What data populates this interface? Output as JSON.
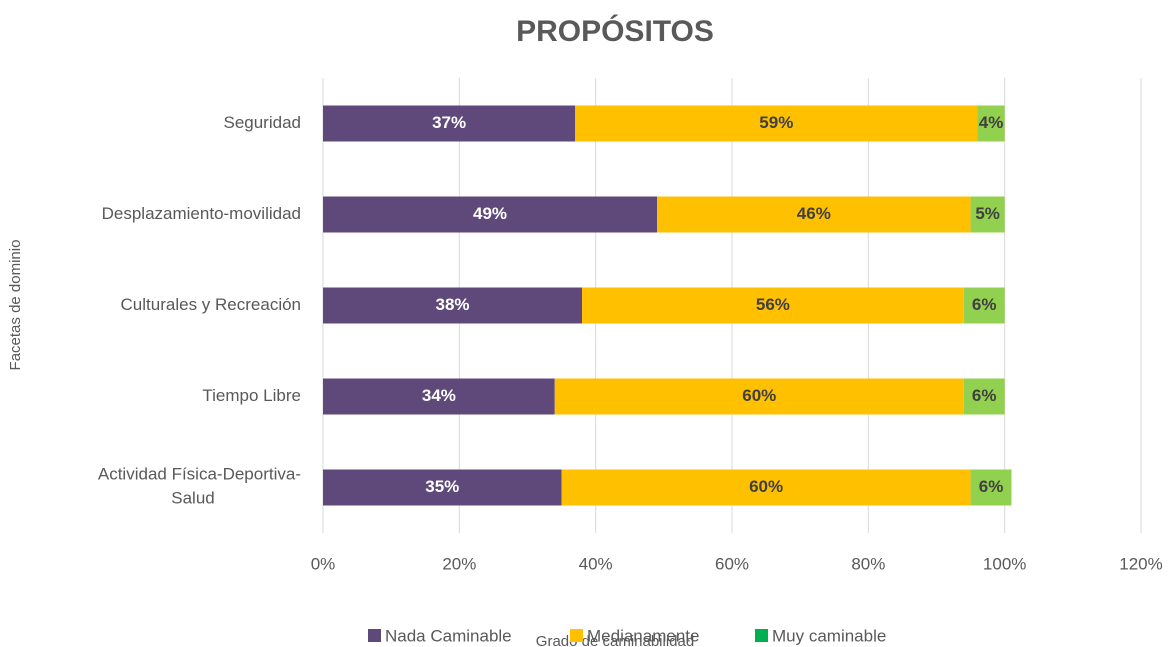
{
  "chart_data": {
    "type": "stacked_barh",
    "title": "PROPÓSITOS",
    "x_label": "Grado de caminabilidad",
    "y_label": "Facetas de dominio",
    "categories": [
      "Seguridad",
      "Desplazamiento-movilidad",
      "Culturales y Recreación ",
      "Tiempo Libre",
      "Actividad Física-Deportiva-Salud"
    ],
    "series": [
      {
        "name": "Nada Caminable",
        "color": "#5f497a",
        "label_color": "#ffffff",
        "values": [
          37,
          49,
          38,
          34,
          35
        ],
        "value_labels": [
          "37%",
          "49%",
          "38%",
          "34%",
          "35%"
        ]
      },
      {
        "name": "Medianamente",
        "color": "#ffc000",
        "label_color": "#404040",
        "values": [
          59,
          46,
          56,
          60,
          60
        ],
        "value_labels": [
          "59%",
          "46%",
          "56%",
          "60%",
          "60%"
        ]
      },
      {
        "name": "Muy caminable",
        "color": "#92d050",
        "legend_color": "#00b050",
        "label_color": "#404040",
        "values": [
          4,
          5,
          6,
          6,
          6
        ],
        "value_labels": [
          "4%",
          "5%",
          "6%",
          "6%",
          "6%"
        ]
      }
    ],
    "xlim": [
      0,
      120
    ],
    "xticks": [
      {
        "value": 0,
        "label": "0%"
      },
      {
        "value": 20,
        "label": "20%"
      },
      {
        "value": 40,
        "label": "40%"
      },
      {
        "value": 60,
        "label": "60%"
      },
      {
        "value": 80,
        "label": "80%"
      },
      {
        "value": 100,
        "label": "100%"
      },
      {
        "value": 120,
        "label": "120%"
      }
    ],
    "grid": true,
    "legend": "bottom"
  }
}
